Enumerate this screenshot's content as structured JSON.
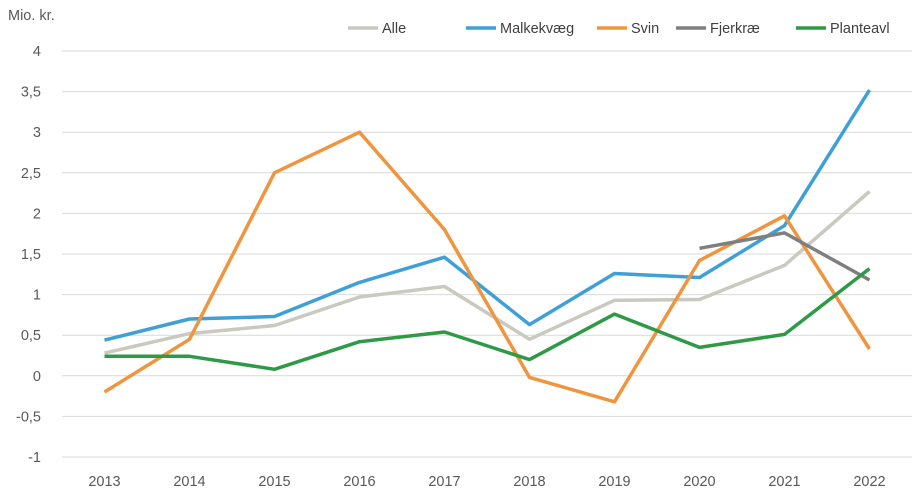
{
  "chart_data": {
    "type": "line",
    "title": "",
    "xlabel": "",
    "ylabel": "Mio. kr.",
    "ylim": [
      -1,
      4
    ],
    "yticks": [
      {
        "value": 4,
        "label": "4"
      },
      {
        "value": 3.5,
        "label": "3,5"
      },
      {
        "value": 3,
        "label": "3"
      },
      {
        "value": 2.5,
        "label": "2,5"
      },
      {
        "value": 2,
        "label": "2"
      },
      {
        "value": 1.5,
        "label": "1,5"
      },
      {
        "value": 1,
        "label": "1"
      },
      {
        "value": 0.5,
        "label": "0,5"
      },
      {
        "value": 0,
        "label": "0"
      },
      {
        "value": -0.5,
        "label": "-0,5"
      },
      {
        "value": -1,
        "label": "-1"
      }
    ],
    "grid": true,
    "legend": "top-right",
    "categories": [
      "2013",
      "2014",
      "2015",
      "2016",
      "2017",
      "2018",
      "2019",
      "2020",
      "2021",
      "2022"
    ],
    "series": [
      {
        "name": "Alle",
        "color": "#c9c9c0",
        "values": [
          0.28,
          0.52,
          0.62,
          0.97,
          1.1,
          0.45,
          0.93,
          0.94,
          1.36,
          2.27
        ]
      },
      {
        "name": "Malkekvæg",
        "color": "#3fa0d7",
        "values": [
          0.44,
          0.7,
          0.73,
          1.15,
          1.46,
          0.63,
          1.26,
          1.21,
          1.85,
          3.52
        ]
      },
      {
        "name": "Svin",
        "color": "#f0953f",
        "values": [
          -0.2,
          0.45,
          2.5,
          3.0,
          1.8,
          -0.02,
          -0.32,
          1.42,
          1.97,
          0.33
        ]
      },
      {
        "name": "Fjerkræ",
        "color": "#7f7f7f",
        "values": [
          null,
          null,
          null,
          null,
          null,
          null,
          null,
          1.57,
          1.76,
          1.18
        ]
      },
      {
        "name": "Planteavl",
        "color": "#2e9a46",
        "values": [
          0.24,
          0.24,
          0.08,
          0.42,
          0.54,
          0.2,
          0.76,
          0.35,
          0.51,
          1.32
        ]
      }
    ]
  }
}
